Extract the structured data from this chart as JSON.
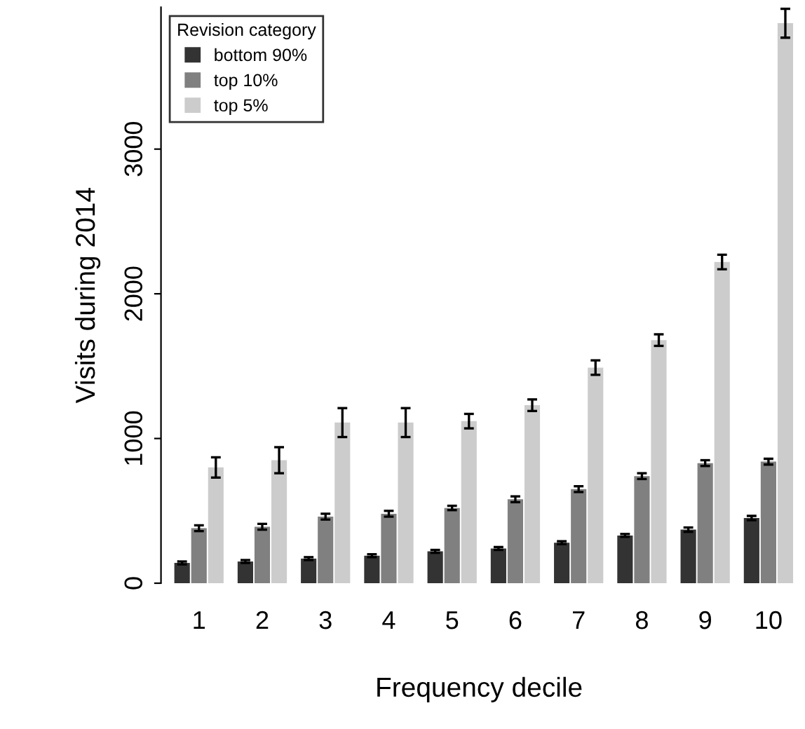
{
  "chart_data": {
    "type": "bar",
    "xlabel": "Frequency decile",
    "ylabel": "Visits during 2014",
    "legend_title": "Revision category",
    "categories": [
      "1",
      "2",
      "3",
      "4",
      "5",
      "6",
      "7",
      "8",
      "9",
      "10"
    ],
    "series": [
      {
        "name": "bottom 90%",
        "color": "#333333",
        "values": [
          140,
          150,
          170,
          190,
          220,
          240,
          280,
          330,
          370,
          450
        ],
        "errors": [
          10,
          10,
          10,
          10,
          10,
          10,
          10,
          10,
          15,
          15
        ]
      },
      {
        "name": "top 10%",
        "color": "#808080",
        "values": [
          380,
          390,
          460,
          480,
          520,
          580,
          650,
          740,
          830,
          840
        ],
        "errors": [
          20,
          20,
          20,
          20,
          15,
          20,
          20,
          20,
          20,
          20
        ]
      },
      {
        "name": "top 5%",
        "color": "#cccccc",
        "values": [
          800,
          850,
          1110,
          1110,
          1120,
          1230,
          1490,
          1680,
          2220,
          3870
        ],
        "errors": [
          70,
          90,
          100,
          100,
          50,
          40,
          50,
          40,
          50,
          100
        ]
      }
    ],
    "ylim": [
      0,
      3980
    ],
    "yticks": [
      0,
      1000,
      2000,
      3000
    ],
    "grid": false,
    "legend": "top left"
  }
}
